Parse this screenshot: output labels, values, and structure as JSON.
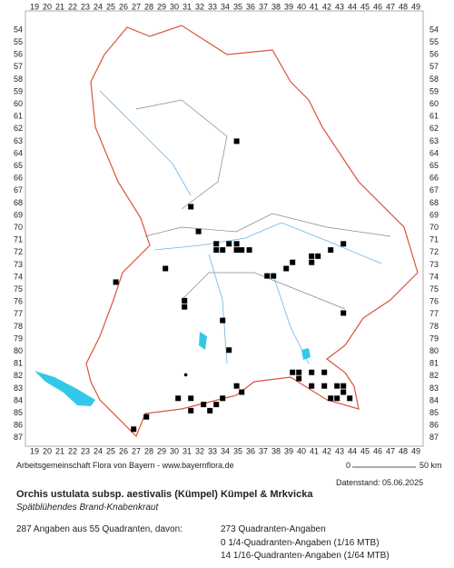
{
  "map": {
    "x_labels": [
      19,
      20,
      21,
      22,
      23,
      24,
      25,
      26,
      27,
      28,
      29,
      30,
      31,
      32,
      33,
      34,
      35,
      36,
      37,
      38,
      39,
      40,
      41,
      42,
      43,
      44,
      45,
      46,
      47,
      48,
      49
    ],
    "y_labels": [
      54,
      55,
      56,
      57,
      58,
      59,
      60,
      61,
      62,
      63,
      64,
      65,
      66,
      67,
      68,
      69,
      70,
      71,
      72,
      73,
      74,
      75,
      76,
      77,
      78,
      79,
      80,
      81,
      82,
      83,
      84,
      85,
      86,
      87
    ],
    "points": [
      [
        34.9,
        63.0
      ],
      [
        31.3,
        68.3
      ],
      [
        31.9,
        70.3
      ],
      [
        33.3,
        71.3
      ],
      [
        34.3,
        71.3
      ],
      [
        34.9,
        71.3
      ],
      [
        33.3,
        71.8
      ],
      [
        33.8,
        71.8
      ],
      [
        34.9,
        71.8
      ],
      [
        35.3,
        71.8
      ],
      [
        35.9,
        71.8
      ],
      [
        29.3,
        73.3
      ],
      [
        25.4,
        74.4
      ],
      [
        30.8,
        75.9
      ],
      [
        30.8,
        76.4
      ],
      [
        33.8,
        77.5
      ],
      [
        37.3,
        73.9
      ],
      [
        37.8,
        73.9
      ],
      [
        38.8,
        73.3
      ],
      [
        39.3,
        72.8
      ],
      [
        40.8,
        72.3
      ],
      [
        41.3,
        72.3
      ],
      [
        40.8,
        72.8
      ],
      [
        42.3,
        71.8
      ],
      [
        43.3,
        71.3
      ],
      [
        43.3,
        76.9
      ],
      [
        34.3,
        79.9
      ],
      [
        39.3,
        81.7
      ],
      [
        39.8,
        81.7
      ],
      [
        39.8,
        82.2
      ],
      [
        40.8,
        81.7
      ],
      [
        41.8,
        81.7
      ],
      [
        40.8,
        82.8
      ],
      [
        41.8,
        82.8
      ],
      [
        42.8,
        82.8
      ],
      [
        43.3,
        82.8
      ],
      [
        43.3,
        83.3
      ],
      [
        42.8,
        83.8
      ],
      [
        43.8,
        83.8
      ],
      [
        42.3,
        83.8
      ],
      [
        34.9,
        82.8
      ],
      [
        35.3,
        83.3
      ],
      [
        33.8,
        83.8
      ],
      [
        33.3,
        84.3
      ],
      [
        32.3,
        84.3
      ],
      [
        32.8,
        84.8
      ],
      [
        31.3,
        83.8
      ],
      [
        30.3,
        83.8
      ],
      [
        31.3,
        84.8
      ],
      [
        27.8,
        85.3
      ],
      [
        26.8,
        86.3
      ]
    ],
    "dots": [
      [
        30.9,
        81.9
      ]
    ]
  },
  "footer": {
    "credit": "Arbeitsgemeinschaft Flora von Bayern - www.bayernflora.de",
    "scale_start": "0",
    "scale_end": "50 km",
    "date": "Datenstand: 05.06.2025"
  },
  "species": {
    "title": "Orchis ustulata subsp. aestivalis (Kümpel) Kümpel & Mrkvicka",
    "common_name": "Spätblühendes Brand-Knabenkraut"
  },
  "stats": {
    "summary": "287 Angaben aus 55 Quadranten, davon:",
    "lines": [
      "273 Quadranten-Angaben",
      "0 1/4-Quadranten-Angaben (1/16 MTB)",
      "14 1/16-Quadranten-Angaben (1/64 MTB)"
    ]
  }
}
